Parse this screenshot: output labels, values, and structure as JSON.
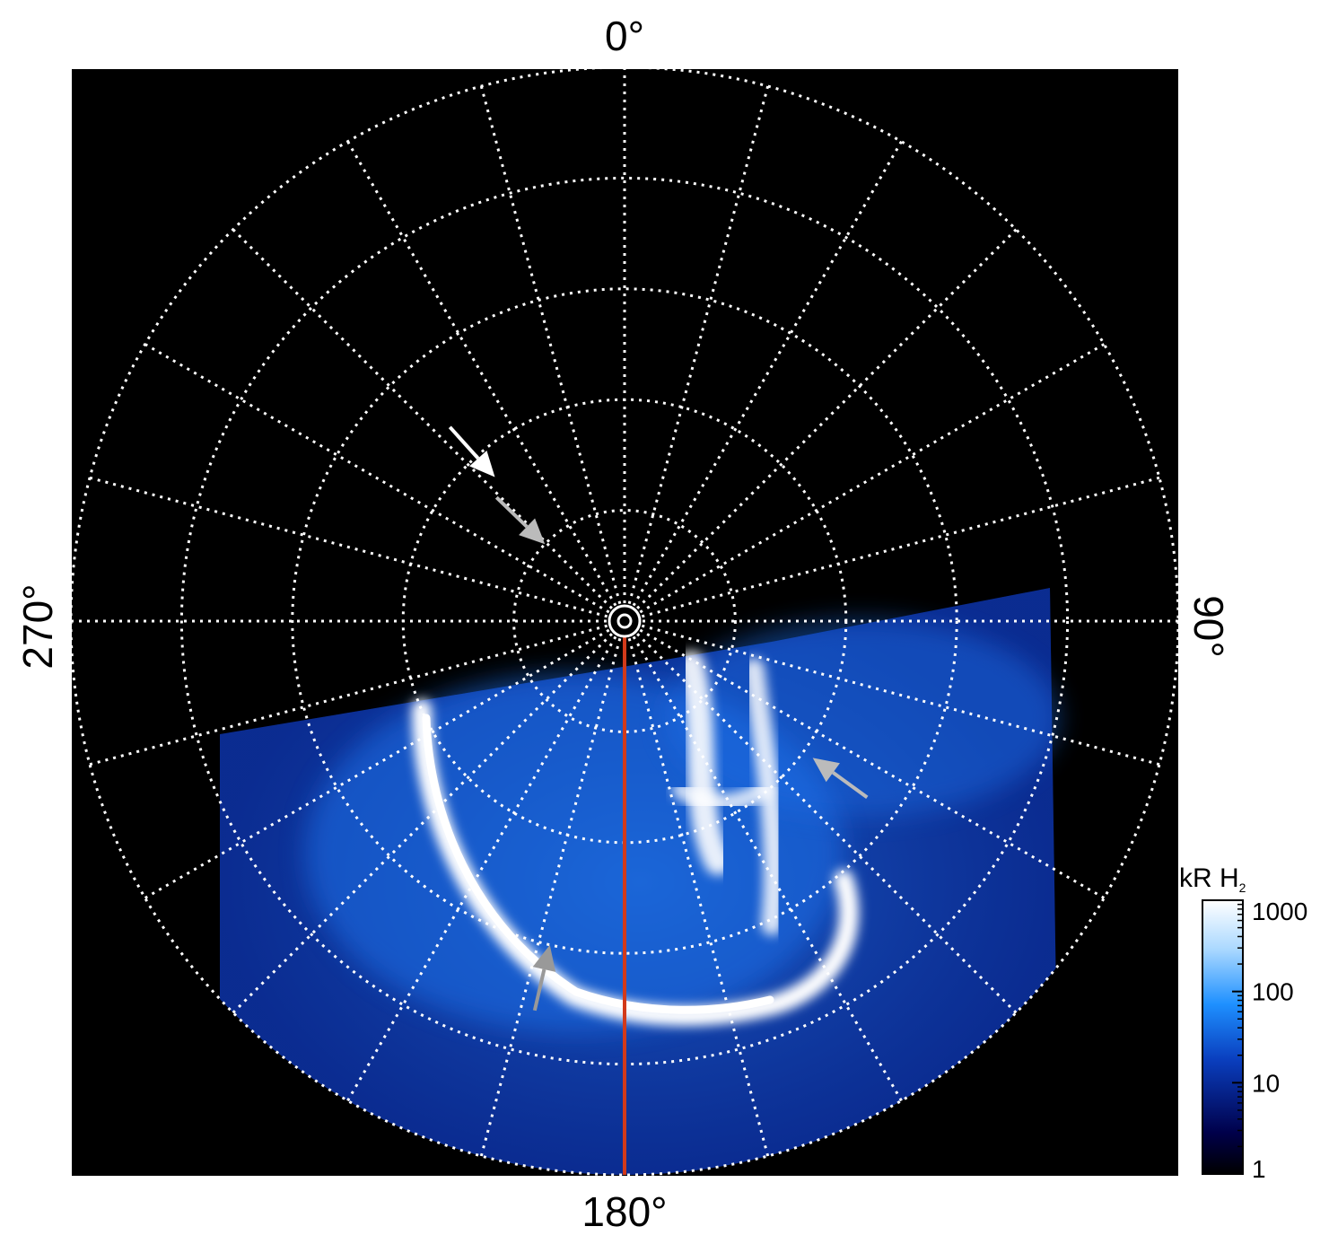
{
  "chart_data": {
    "type": "heatmap",
    "projection": "polar",
    "title": "",
    "angle_labels": [
      {
        "angle": 0,
        "text": "0°"
      },
      {
        "angle": 90,
        "text": "90°"
      },
      {
        "angle": 180,
        "text": "180°"
      },
      {
        "angle": 270,
        "text": "270°"
      }
    ],
    "grid": {
      "shown": true,
      "style": "dotted",
      "color": "#ffffff",
      "meridian_step_deg": 15,
      "parallel_count": 5
    },
    "reference_line": {
      "angle": 180,
      "color": "#d23a1a"
    },
    "colorbar": {
      "title_main": "kR H",
      "title_sub": "2",
      "scale": "log",
      "range": [
        1,
        1000
      ],
      "ticks": [
        "1",
        "10",
        "100",
        "1000"
      ],
      "colors": [
        "#000000",
        "#00004a",
        "#0a3fbf",
        "#1e90ff",
        "#aad8ff",
        "#ffffff"
      ],
      "position": "bottom-right"
    },
    "arrows": [
      {
        "color": "#ffffff",
        "angle": 318,
        "radius_fraction": 0.35
      },
      {
        "color": "#bbbbbb",
        "angle": 314,
        "radius_fraction": 0.2
      },
      {
        "color": "#bbbbbb",
        "angle": 126,
        "radius_fraction": 0.42
      },
      {
        "color": "#999999",
        "angle": 193,
        "radius_fraction": 0.6
      }
    ]
  }
}
